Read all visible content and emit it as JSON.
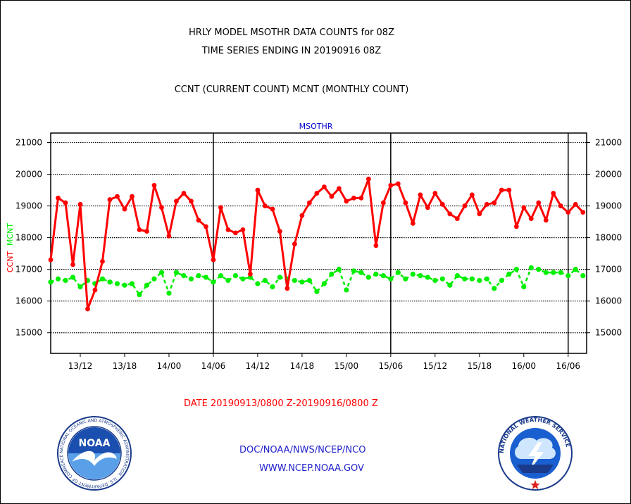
{
  "titles": {
    "line1": "HRLY MODEL MSOTHR DATA COUNTS for 08Z",
    "line2": "TIME SERIES ENDING IN 20190916 08Z",
    "line3": "CCNT (CURRENT COUNT) MCNT (MONTHLY COUNT)"
  },
  "footer": {
    "date_range": "DATE 20190913/0800 Z-20190916/0800 Z",
    "org": "DOC/NOAA/NWS/NCEP/NCO",
    "url": "WWW.NCEP.NOAA.GOV"
  },
  "logos": {
    "noaa": {
      "icon": "noaa-logo-icon",
      "center_text": "NOAA",
      "ring_text": "NATIONAL OCEANIC AND ATMOSPHERIC ADMINISTRATION · U.S. DEPARTMENT OF COMMERCE"
    },
    "nws": {
      "icon": "nws-logo-icon",
      "ring_text": "NATIONAL WEATHER SERVICE"
    }
  },
  "colors": {
    "ccnt": "#ff0000",
    "mcnt": "#00ee00",
    "plot_label": "#0000cc",
    "axis": "#000000"
  },
  "chart_data": {
    "type": "line",
    "title": "MSOTHR",
    "ylabel_left": "CCNT",
    "ylabel_left2": "MCNT",
    "ylim": [
      14350,
      21300
    ],
    "yticks": [
      15000,
      16000,
      17000,
      18000,
      19000,
      20000,
      21000
    ],
    "ytick_labels": [
      "15000",
      "16000",
      "17000",
      "18000",
      "19000",
      "20000",
      "21000"
    ],
    "xlim_hours": [
      0,
      72.5
    ],
    "xticks": [
      {
        "h": 4,
        "label": "13/12"
      },
      {
        "h": 10,
        "label": "13/18"
      },
      {
        "h": 16,
        "label": "14/00"
      },
      {
        "h": 22,
        "label": "14/06"
      },
      {
        "h": 28,
        "label": "14/12"
      },
      {
        "h": 34,
        "label": "14/18"
      },
      {
        "h": 40,
        "label": "15/00"
      },
      {
        "h": 46,
        "label": "15/06"
      },
      {
        "h": 52,
        "label": "15/12"
      },
      {
        "h": 58,
        "label": "15/18"
      },
      {
        "h": 64,
        "label": "16/00"
      },
      {
        "h": 70,
        "label": "16/06"
      }
    ],
    "day_dividers_hours": [
      22,
      46,
      70
    ],
    "grid": "horizontal dotted",
    "series": [
      {
        "name": "CCNT",
        "color": "#ff0000",
        "values": [
          17300,
          19250,
          19100,
          17150,
          19050,
          15750,
          16350,
          17250,
          19200,
          19300,
          18900,
          19300,
          18250,
          18200,
          19650,
          18950,
          18050,
          19150,
          19400,
          19150,
          18550,
          18350,
          17300,
          18950,
          18250,
          18150,
          18250,
          16850,
          19500,
          19000,
          18900,
          18200,
          16400,
          17800,
          18700,
          19100,
          19400,
          19600,
          19300,
          19550,
          19150,
          19250,
          19250,
          19850,
          17750,
          19100,
          19650,
          19700,
          19100,
          18450,
          19350,
          18950,
          19400,
          19050,
          18750,
          18600,
          19000,
          19350,
          18750,
          19050,
          19100,
          19500,
          19500,
          18350,
          18950,
          18600,
          19100,
          18550,
          19400,
          19000,
          18800,
          19050,
          18800
        ]
      },
      {
        "name": "MCNT",
        "color": "#00ee00",
        "values": [
          16600,
          16700,
          16650,
          16750,
          16450,
          16650,
          16550,
          16700,
          16600,
          16550,
          16500,
          16550,
          16200,
          16500,
          16700,
          16900,
          16250,
          16900,
          16800,
          16700,
          16800,
          16750,
          16600,
          16800,
          16650,
          16800,
          16700,
          16750,
          16550,
          16650,
          16450,
          16750,
          16700,
          16650,
          16600,
          16650,
          16300,
          16550,
          16850,
          17000,
          16350,
          16950,
          16900,
          16750,
          16850,
          16800,
          16700,
          16900,
          16700,
          16850,
          16800,
          16750,
          16650,
          16700,
          16500,
          16800,
          16700,
          16700,
          16650,
          16700,
          16400,
          16650,
          16850,
          17000,
          16450,
          17050,
          17000,
          16900,
          16900,
          16900,
          16800,
          17000,
          16800
        ]
      }
    ]
  }
}
